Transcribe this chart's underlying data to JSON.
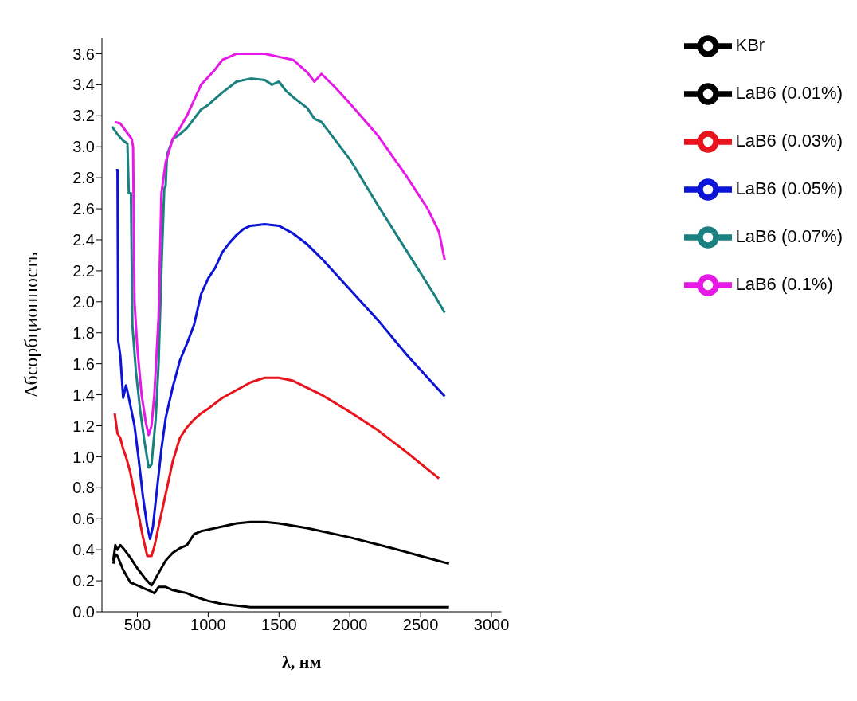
{
  "chart_data": {
    "type": "line",
    "xlabel": "λ, нм",
    "ylabel": "Абсорбционность",
    "xlim": [
      250,
      3070
    ],
    "xticks": [
      500,
      1000,
      1500,
      2000,
      2500,
      3000
    ],
    "ylim": [
      0,
      3.7
    ],
    "yticks": [
      {
        "value": 0,
        "label": "0.0"
      },
      0.2,
      0.4,
      0.6,
      0.8,
      {
        "value": 1,
        "label": "1.0"
      },
      1.2,
      1.4,
      1.6,
      1.8,
      {
        "value": 2,
        "label": "2.0"
      },
      2.2,
      2.4,
      2.6,
      2.8,
      {
        "value": 3,
        "label": "3.0"
      },
      3.2,
      3.4,
      3.6
    ],
    "grid": false,
    "legend": "top right",
    "marker": "none",
    "line_style": "solid",
    "series": [
      {
        "name": "KBr",
        "color": "#000000",
        "x": [
          330,
          345,
          360,
          400,
          450,
          500,
          550,
          600,
          620,
          650,
          700,
          750,
          800,
          850,
          900,
          1000,
          1100,
          1200,
          1300,
          1500,
          2000,
          2500,
          2700
        ],
        "values": [
          0.31,
          0.37,
          0.36,
          0.27,
          0.19,
          0.17,
          0.15,
          0.13,
          0.12,
          0.16,
          0.16,
          0.14,
          0.13,
          0.12,
          0.1,
          0.07,
          0.05,
          0.04,
          0.03,
          0.03,
          0.03,
          0.03,
          0.03
        ]
      },
      {
        "name": "LaB6 (0.01%)",
        "color": "#000000",
        "x": [
          330,
          345,
          360,
          380,
          400,
          450,
          500,
          550,
          590,
          600,
          620,
          650,
          700,
          750,
          800,
          850,
          900,
          950,
          1000,
          1100,
          1200,
          1300,
          1400,
          1500,
          1700,
          2000,
          2300,
          2500,
          2700
        ],
        "values": [
          0.33,
          0.43,
          0.4,
          0.43,
          0.41,
          0.35,
          0.28,
          0.22,
          0.18,
          0.17,
          0.2,
          0.25,
          0.33,
          0.38,
          0.41,
          0.43,
          0.5,
          0.52,
          0.53,
          0.55,
          0.57,
          0.58,
          0.58,
          0.57,
          0.54,
          0.48,
          0.41,
          0.36,
          0.31
        ]
      },
      {
        "name": "LaB6 (0.03%)",
        "color": "#e8131b",
        "x": [
          340,
          360,
          380,
          400,
          420,
          450,
          480,
          510,
          540,
          560,
          570,
          600,
          620,
          650,
          700,
          750,
          800,
          850,
          900,
          950,
          1000,
          1100,
          1200,
          1300,
          1400,
          1500,
          1600,
          1800,
          2000,
          2200,
          2400,
          2630
        ],
        "values": [
          1.28,
          1.15,
          1.12,
          1.05,
          1,
          0.9,
          0.76,
          0.62,
          0.48,
          0.4,
          0.36,
          0.36,
          0.42,
          0.55,
          0.76,
          0.97,
          1.12,
          1.19,
          1.24,
          1.28,
          1.31,
          1.38,
          1.43,
          1.48,
          1.51,
          1.51,
          1.49,
          1.4,
          1.29,
          1.17,
          1.03,
          0.86
        ]
      },
      {
        "name": "LaB6 (0.05%)",
        "color": "#0c14d6",
        "x": [
          350,
          360,
          365,
          380,
          400,
          420,
          440,
          480,
          510,
          540,
          570,
          590,
          610,
          640,
          670,
          700,
          750,
          780,
          800,
          850,
          900,
          950,
          1000,
          1050,
          1100,
          1150,
          1200,
          1250,
          1300,
          1400,
          1500,
          1600,
          1700,
          1800,
          2000,
          2200,
          2400,
          2600,
          2670
        ],
        "values": [
          2.85,
          2.85,
          1.75,
          1.65,
          1.38,
          1.46,
          1.38,
          1.2,
          0.98,
          0.74,
          0.55,
          0.47,
          0.55,
          0.8,
          1.05,
          1.25,
          1.45,
          1.55,
          1.62,
          1.73,
          1.85,
          2.05,
          2.15,
          2.22,
          2.32,
          2.38,
          2.43,
          2.47,
          2.49,
          2.5,
          2.49,
          2.44,
          2.37,
          2.28,
          2.08,
          1.88,
          1.66,
          1.46,
          1.39
        ]
      },
      {
        "name": "LaB6 (0.07%)",
        "color": "#1a8080",
        "x": [
          320,
          360,
          400,
          430,
          440,
          455,
          465,
          490,
          520,
          550,
          580,
          600,
          630,
          650,
          670,
          690,
          700,
          710,
          750,
          800,
          850,
          900,
          950,
          1000,
          1100,
          1200,
          1300,
          1400,
          1450,
          1500,
          1550,
          1600,
          1700,
          1750,
          1800,
          2000,
          2200,
          2400,
          2600,
          2670
        ],
        "values": [
          3.13,
          3.08,
          3.04,
          3.02,
          2.7,
          2.7,
          1.85,
          1.55,
          1.3,
          1.1,
          0.93,
          0.95,
          1.25,
          1.6,
          2.2,
          2.73,
          2.75,
          2.95,
          3.05,
          3.08,
          3.12,
          3.18,
          3.24,
          3.27,
          3.35,
          3.42,
          3.44,
          3.43,
          3.4,
          3.42,
          3.36,
          3.32,
          3.25,
          3.18,
          3.16,
          2.92,
          2.62,
          2.33,
          2.04,
          1.93
        ]
      },
      {
        "name": "LaB6 (0.1%)",
        "color": "#e619e6",
        "x": [
          340,
          380,
          420,
          460,
          470,
          480,
          500,
          530,
          560,
          580,
          600,
          620,
          650,
          670,
          700,
          750,
          800,
          850,
          900,
          950,
          1000,
          1050,
          1100,
          1150,
          1200,
          1300,
          1400,
          1500,
          1600,
          1700,
          1750,
          1800,
          1900,
          2000,
          2200,
          2400,
          2550,
          2630,
          2670
        ],
        "values": [
          3.16,
          3.15,
          3.1,
          3.05,
          3,
          2,
          1.7,
          1.4,
          1.22,
          1.14,
          1.2,
          1.4,
          1.9,
          2.7,
          2.9,
          3.05,
          3.12,
          3.2,
          3.3,
          3.4,
          3.45,
          3.5,
          3.56,
          3.58,
          3.6,
          3.6,
          3.6,
          3.58,
          3.56,
          3.48,
          3.42,
          3.47,
          3.38,
          3.28,
          3.07,
          2.81,
          2.6,
          2.45,
          2.27
        ]
      }
    ]
  }
}
